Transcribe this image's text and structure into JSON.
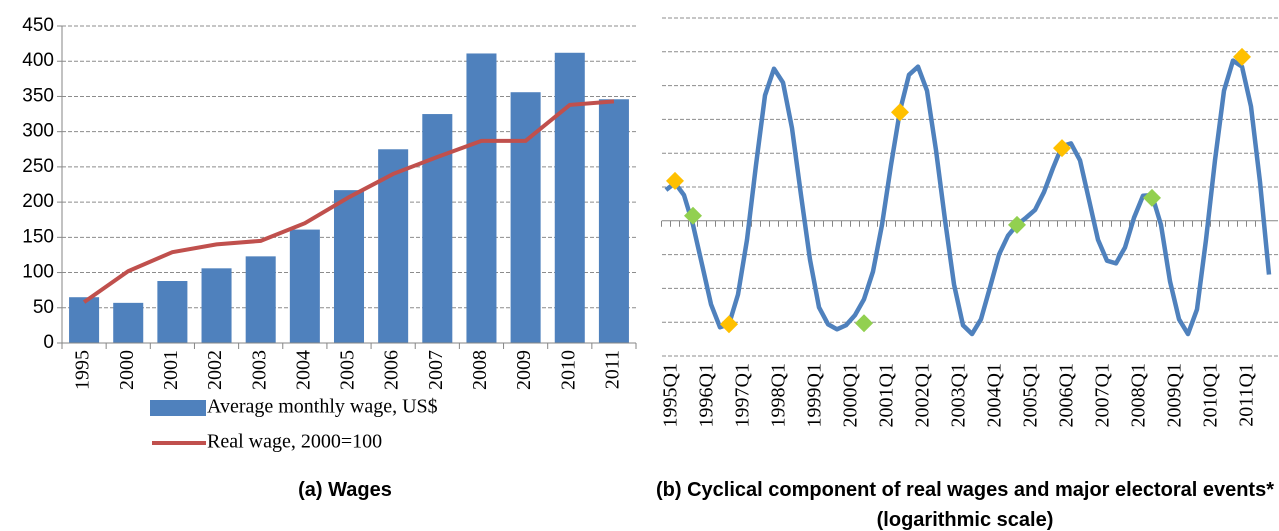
{
  "chart_data": [
    {
      "type": "bar",
      "title": "(a) Wages",
      "categories": [
        "1995",
        "2000",
        "2001",
        "2002",
        "2003",
        "2004",
        "2005",
        "2006",
        "2007",
        "2008",
        "2009",
        "2010",
        "2011"
      ],
      "series": [
        {
          "name": "Average monthly wage, US$",
          "type": "bar",
          "color": "#4f81bd",
          "values": [
            65,
            57,
            88,
            106,
            123,
            161,
            217,
            275,
            325,
            411,
            356,
            412,
            346
          ]
        },
        {
          "name": "Real wage, 2000=100",
          "type": "line",
          "color": "#c0504d",
          "values": [
            58,
            102,
            129,
            140,
            145,
            170,
            207,
            240,
            264,
            287,
            287,
            338,
            343
          ]
        }
      ],
      "ylim": [
        0,
        450
      ],
      "yticks": [
        0,
        50,
        100,
        150,
        200,
        250,
        300,
        350,
        400,
        450
      ],
      "grid": true,
      "legend": "bottom"
    },
    {
      "type": "line",
      "title": "(b) Cyclical component of real wages and major electoral events* (logarithmic scale)",
      "categories": [
        "1995Q1",
        null,
        null,
        null,
        "1996Q1",
        null,
        null,
        null,
        "1997Q1",
        null,
        null,
        null,
        "1998Q1",
        null,
        null,
        null,
        "1999Q1",
        null,
        null,
        null,
        "2000Q1",
        null,
        null,
        null,
        "2001Q1",
        null,
        null,
        null,
        "2002Q1",
        null,
        null,
        null,
        "2003Q1",
        null,
        null,
        null,
        "2004Q1",
        null,
        null,
        null,
        "2005Q1",
        null,
        null,
        null,
        "2006Q1",
        null,
        null,
        null,
        "2007Q1",
        null,
        null,
        null,
        "2008Q1",
        null,
        null,
        null,
        "2009Q1",
        null,
        null,
        null,
        "2010Q1",
        null,
        null,
        null,
        "2011Q1",
        null,
        null,
        null
      ],
      "series": [
        {
          "color": "#4f81bd",
          "values": [
            0.91,
            1.12,
            0.76,
            -0.12,
            -1.29,
            -2.47,
            -3.15,
            -3.06,
            -2.18,
            -0.56,
            1.65,
            3.71,
            4.5,
            4.09,
            2.74,
            0.76,
            -1.15,
            -2.56,
            -3.06,
            -3.21,
            -3.09,
            -2.79,
            -2.32,
            -1.5,
            -0.12,
            1.65,
            3.26,
            4.32,
            4.56,
            3.85,
            2.09,
            0.03,
            -1.88,
            -3.09,
            -3.35,
            -2.91,
            -1.97,
            -1,
            -0.44,
            -0.12,
            0.09,
            0.32,
            0.85,
            1.56,
            2.21,
            2.29,
            1.79,
            0.62,
            -0.56,
            -1.18,
            -1.26,
            -0.79,
            0.09,
            0.74,
            0.76,
            -0.12,
            -1.79,
            -2.91,
            -3.35,
            -2.62,
            -0.56,
            1.79,
            3.85,
            4.74,
            4.56,
            3.38,
            1.15,
            -1.59
          ]
        },
        {
          "color": "#ffc000",
          "marker": "diamond",
          "values": [
            null,
            1.18,
            null,
            null,
            null,
            null,
            null,
            -3.06,
            null,
            null,
            null,
            null,
            null,
            null,
            null,
            null,
            null,
            null,
            null,
            null,
            null,
            null,
            null,
            null,
            null,
            null,
            3.21,
            null,
            null,
            null,
            null,
            null,
            null,
            null,
            null,
            null,
            null,
            null,
            null,
            null,
            null,
            null,
            null,
            null,
            2.15,
            null,
            null,
            null,
            null,
            null,
            null,
            null,
            null,
            null,
            null,
            null,
            null,
            null,
            null,
            null,
            null,
            null,
            null,
            null,
            4.85,
            null,
            null,
            null
          ]
        },
        {
          "color": "#92d050",
          "marker": "diamond",
          "values": [
            null,
            null,
            null,
            0.15,
            null,
            null,
            null,
            null,
            null,
            null,
            null,
            null,
            null,
            null,
            null,
            null,
            null,
            null,
            null,
            null,
            null,
            null,
            -3.03,
            null,
            null,
            null,
            null,
            null,
            null,
            null,
            null,
            null,
            null,
            null,
            null,
            null,
            null,
            null,
            null,
            -0.12,
            null,
            null,
            null,
            null,
            null,
            null,
            null,
            null,
            null,
            null,
            null,
            null,
            null,
            null,
            0.68,
            null,
            null,
            null,
            null,
            null,
            null,
            null,
            null,
            null,
            null,
            null,
            null,
            null
          ]
        }
      ],
      "ylim": [
        -4,
        6
      ],
      "yticks": [
        -4,
        -3,
        -2,
        -1,
        0,
        1,
        2,
        3,
        4,
        5,
        6
      ],
      "grid": true
    }
  ]
}
